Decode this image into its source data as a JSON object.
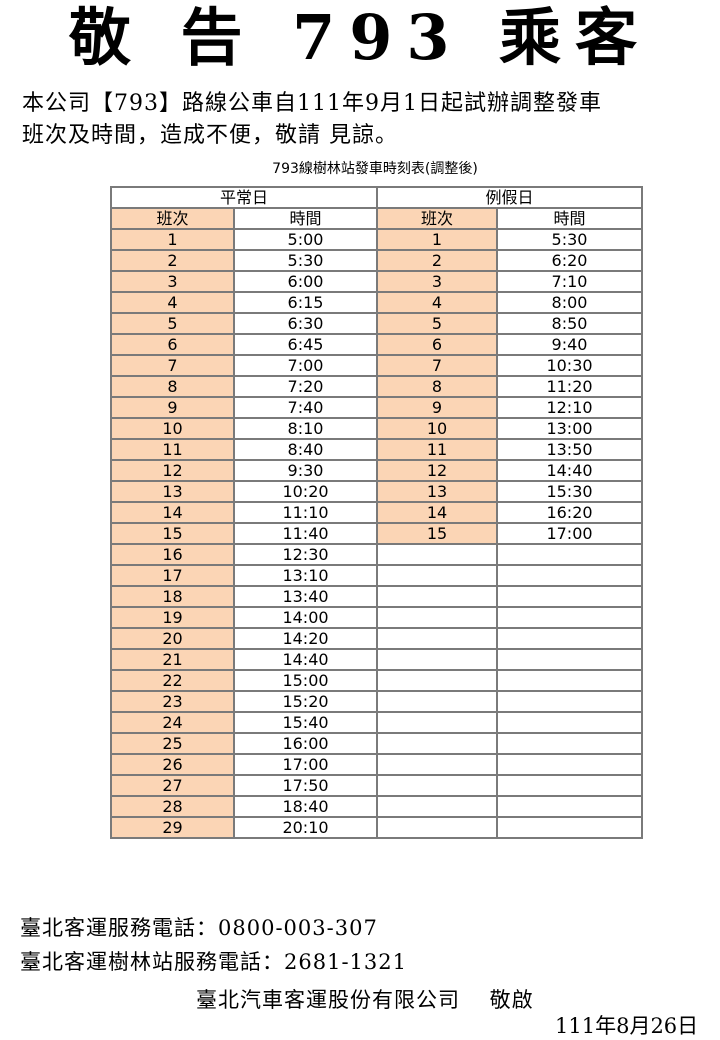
{
  "title": "敬 告 793 乘客",
  "intro_line1": "本公司【793】路線公車自111年9月1日起試辦調整發車",
  "intro_line2": "班次及時間，造成不便，敬請 見諒。",
  "table_caption": "793線樹林站發車時刻表(調整後)",
  "weekday": {
    "label": "平常日",
    "col_no": "班次",
    "col_time": "時間",
    "rows": [
      [
        "1",
        "5:00"
      ],
      [
        "2",
        "5:30"
      ],
      [
        "3",
        "6:00"
      ],
      [
        "4",
        "6:15"
      ],
      [
        "5",
        "6:30"
      ],
      [
        "6",
        "6:45"
      ],
      [
        "7",
        "7:00"
      ],
      [
        "8",
        "7:20"
      ],
      [
        "9",
        "7:40"
      ],
      [
        "10",
        "8:10"
      ],
      [
        "11",
        "8:40"
      ],
      [
        "12",
        "9:30"
      ],
      [
        "13",
        "10:20"
      ],
      [
        "14",
        "11:10"
      ],
      [
        "15",
        "11:40"
      ],
      [
        "16",
        "12:30"
      ],
      [
        "17",
        "13:10"
      ],
      [
        "18",
        "13:40"
      ],
      [
        "19",
        "14:00"
      ],
      [
        "20",
        "14:20"
      ],
      [
        "21",
        "14:40"
      ],
      [
        "22",
        "15:00"
      ],
      [
        "23",
        "15:20"
      ],
      [
        "24",
        "15:40"
      ],
      [
        "25",
        "16:00"
      ],
      [
        "26",
        "17:00"
      ],
      [
        "27",
        "17:50"
      ],
      [
        "28",
        "18:40"
      ],
      [
        "29",
        "20:10"
      ]
    ]
  },
  "holiday": {
    "label": "例假日",
    "col_no": "班次",
    "col_time": "時間",
    "rows": [
      [
        "1",
        "5:30"
      ],
      [
        "2",
        "6:20"
      ],
      [
        "3",
        "7:10"
      ],
      [
        "4",
        "8:00"
      ],
      [
        "5",
        "8:50"
      ],
      [
        "6",
        "9:40"
      ],
      [
        "7",
        "10:30"
      ],
      [
        "8",
        "11:20"
      ],
      [
        "9",
        "12:10"
      ],
      [
        "10",
        "13:00"
      ],
      [
        "11",
        "13:50"
      ],
      [
        "12",
        "14:40"
      ],
      [
        "13",
        "15:30"
      ],
      [
        "14",
        "16:20"
      ],
      [
        "15",
        "17:00"
      ]
    ]
  },
  "footer": {
    "phone1": "臺北客運服務電話：0800-003-307",
    "phone2": "臺北客運樹林站服務電話：2681-1321",
    "company": "臺北汽車客運股份有限公司　 敬啟",
    "date": "111年8月26日"
  },
  "colors": {
    "highlight": "#fbd5b5",
    "border": "#7a7a7a"
  }
}
